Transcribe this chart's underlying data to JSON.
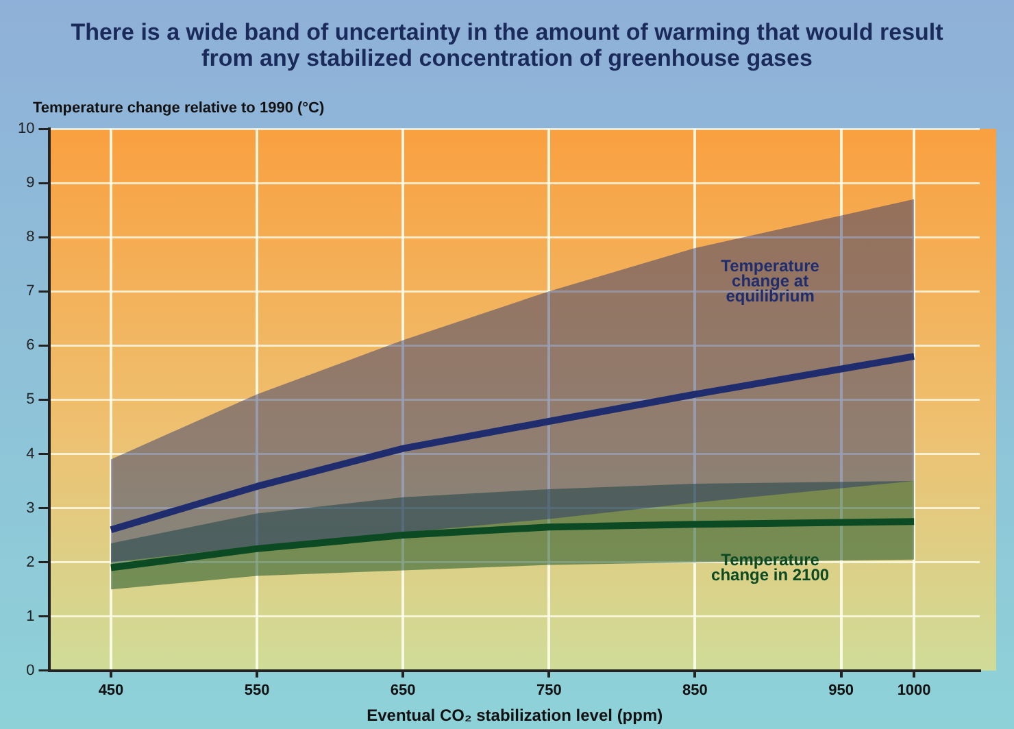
{
  "chart_data": {
    "type": "line",
    "title": "There is a wide band of uncertainty in the amount of warming that would result from any stabilized concentration of greenhouse gases",
    "ylabel": "Temperature change relative to 1990 (°C)",
    "xlabel": "Eventual CO₂ stabilization level (ppm)",
    "x": [
      450,
      550,
      650,
      750,
      850,
      1000
    ],
    "series": [
      {
        "name": "Temperature change at equilibrium",
        "color": "#1f2d6e",
        "values": [
          2.6,
          3.4,
          4.1,
          4.6,
          5.1,
          5.8
        ],
        "lower": [
          2.0,
          2.3,
          2.55,
          2.8,
          3.1,
          3.5
        ],
        "upper": [
          3.9,
          5.1,
          6.1,
          7.0,
          7.8,
          8.7
        ]
      },
      {
        "name": "Temperature change in 2100",
        "color": "#0b4a22",
        "values": [
          1.9,
          2.25,
          2.5,
          2.65,
          2.7,
          2.75
        ],
        "lower": [
          1.5,
          1.75,
          1.85,
          1.95,
          2.0,
          2.05
        ],
        "upper": [
          2.35,
          2.9,
          3.2,
          3.35,
          3.45,
          3.5
        ]
      }
    ],
    "xlim": [
      408,
      1045
    ],
    "xticks": [
      450,
      550,
      650,
      750,
      850,
      950,
      1000
    ],
    "ylim": [
      0,
      10
    ],
    "yticks": [
      0,
      1,
      2,
      3,
      4,
      5,
      6,
      7,
      8,
      9,
      10
    ],
    "grid": true,
    "legend": false,
    "marker": "none",
    "line_style": "solid"
  }
}
